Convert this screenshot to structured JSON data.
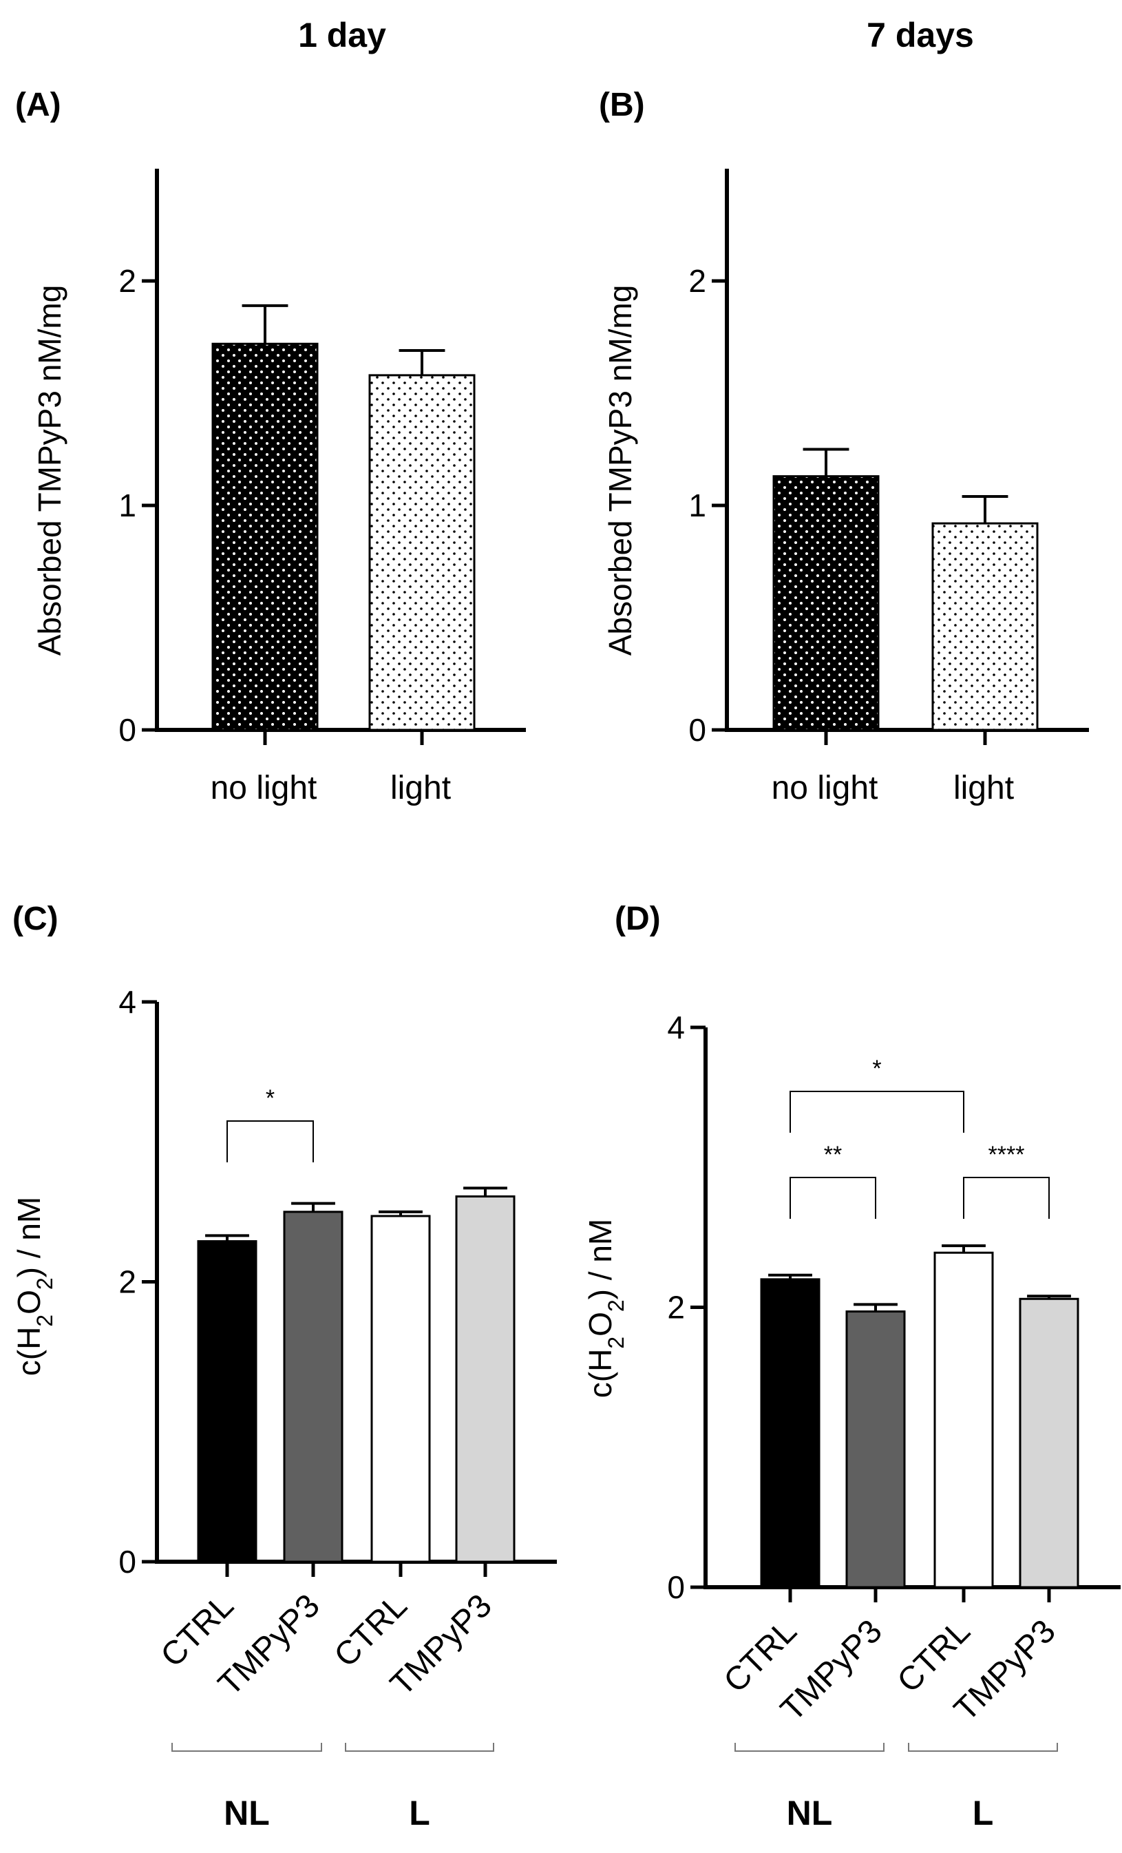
{
  "columns": [
    "1 day",
    "7 days"
  ],
  "colors": {
    "black": "#000000",
    "dark_gray": "#606060",
    "white": "#ffffff",
    "light_gray": "#d6d6d6"
  },
  "chart_data": [
    {
      "panel": "(A)",
      "type": "bar",
      "ylabel": "Absorbed TMPyP3 nM/mg",
      "ylim": [
        0,
        2.5
      ],
      "yticks": [
        0,
        1,
        2
      ],
      "categories": [
        "no light",
        "light"
      ],
      "values": [
        1.72,
        1.58
      ],
      "errors": [
        0.17,
        0.11
      ],
      "fill": [
        "black-dotted",
        "white-dotted"
      ]
    },
    {
      "panel": "(B)",
      "type": "bar",
      "ylabel": "Absorbed TMPyP3 nM/mg",
      "ylim": [
        0,
        2.5
      ],
      "yticks": [
        0,
        1,
        2
      ],
      "categories": [
        "no light",
        "light"
      ],
      "values": [
        1.13,
        0.92
      ],
      "errors": [
        0.12,
        0.12
      ],
      "fill": [
        "black-dotted",
        "white-dotted"
      ]
    },
    {
      "panel": "(C)",
      "type": "bar",
      "ylabel": "c(H2O2) / nM",
      "ylim": [
        0,
        4
      ],
      "yticks": [
        0,
        2,
        4
      ],
      "categories": [
        "CTRL",
        "TMPyP3",
        "CTRL",
        "TMPyP3"
      ],
      "groups": [
        {
          "label": "NL",
          "members": [
            0,
            1
          ]
        },
        {
          "label": "L",
          "members": [
            2,
            3
          ]
        }
      ],
      "values": [
        2.29,
        2.5,
        2.47,
        2.61
      ],
      "errors": [
        0.04,
        0.06,
        0.03,
        0.06
      ],
      "fill": [
        "#000000",
        "#606060",
        "#ffffff",
        "#d6d6d6"
      ],
      "significance": [
        {
          "from": 0,
          "to": 1,
          "label": "*"
        }
      ]
    },
    {
      "panel": "(D)",
      "type": "bar",
      "ylabel": "c(H2O2) / nM",
      "ylim": [
        0,
        4
      ],
      "yticks": [
        0,
        2,
        4
      ],
      "categories": [
        "CTRL",
        "TMPyP3",
        "CTRL",
        "TMPyP3"
      ],
      "groups": [
        {
          "label": "NL",
          "members": [
            0,
            1
          ]
        },
        {
          "label": "L",
          "members": [
            2,
            3
          ]
        }
      ],
      "values": [
        2.2,
        1.97,
        2.39,
        2.06
      ],
      "errors": [
        0.03,
        0.05,
        0.05,
        0.02
      ],
      "fill": [
        "#000000",
        "#606060",
        "#ffffff",
        "#d6d6d6"
      ],
      "significance": [
        {
          "from": 0,
          "to": 2,
          "label": "*"
        },
        {
          "from": 0,
          "to": 1,
          "label": "**"
        },
        {
          "from": 2,
          "to": 3,
          "label": "****"
        }
      ]
    }
  ]
}
